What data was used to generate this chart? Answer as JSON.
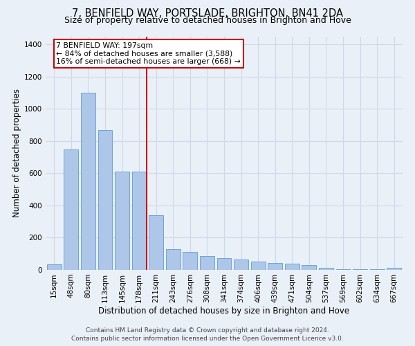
{
  "title": "7, BENFIELD WAY, PORTSLADE, BRIGHTON, BN41 2DA",
  "subtitle": "Size of property relative to detached houses in Brighton and Hove",
  "xlabel": "Distribution of detached houses by size in Brighton and Hove",
  "ylabel": "Number of detached properties",
  "footer1": "Contains HM Land Registry data © Crown copyright and database right 2024.",
  "footer2": "Contains public sector information licensed under the Open Government Licence v3.0.",
  "categories": [
    "15sqm",
    "48sqm",
    "80sqm",
    "113sqm",
    "145sqm",
    "178sqm",
    "211sqm",
    "243sqm",
    "276sqm",
    "308sqm",
    "341sqm",
    "374sqm",
    "406sqm",
    "439sqm",
    "471sqm",
    "504sqm",
    "537sqm",
    "569sqm",
    "602sqm",
    "634sqm",
    "667sqm"
  ],
  "values": [
    35,
    748,
    1100,
    870,
    610,
    610,
    340,
    130,
    110,
    85,
    75,
    65,
    50,
    42,
    38,
    32,
    15,
    6,
    5,
    5,
    14
  ],
  "bar_color": "#aec6e8",
  "bar_edge_color": "#5a9fd4",
  "grid_color": "#d0d8e8",
  "bg_color": "#eaf0f8",
  "annotation_box_color": "#ffffff",
  "annotation_border_color": "#cc0000",
  "property_line_color": "#cc0000",
  "property_label": "7 BENFIELD WAY: 197sqm",
  "annotation_line1": "← 84% of detached houses are smaller (3,588)",
  "annotation_line2": "16% of semi-detached houses are larger (668) →",
  "property_bar_index": 5,
  "ylim": [
    0,
    1450
  ],
  "yticks": [
    0,
    200,
    400,
    600,
    800,
    1000,
    1200,
    1400
  ],
  "title_fontsize": 10.5,
  "subtitle_fontsize": 9,
  "xlabel_fontsize": 8.5,
  "ylabel_fontsize": 8.5,
  "tick_fontsize": 7.5,
  "footer_fontsize": 6.5,
  "annot_fontsize": 7.8
}
